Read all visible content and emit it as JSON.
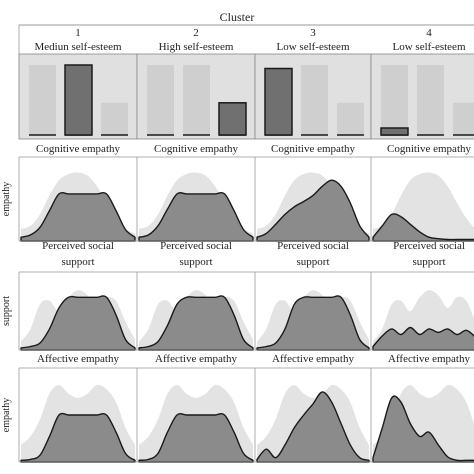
{
  "chart_data": {
    "type": "cluster-profile-grid",
    "header": "Cluster",
    "clusters": [
      {
        "number": "1",
        "self_esteem_label": "Mediun self-esteem",
        "bars": [
          1.0,
          1.0,
          0.46
        ],
        "highlight": 1
      },
      {
        "number": "2",
        "self_esteem_label": "High self-esteem",
        "bars": [
          1.0,
          1.0,
          0.46
        ],
        "highlight": 2
      },
      {
        "number": "3",
        "self_esteem_label": "Low self-esteem",
        "bars": [
          0.95,
          1.0,
          0.46
        ],
        "highlight": 0
      },
      {
        "number": "4",
        "self_esteem_label": "Low self-esteem",
        "bars": [
          1.0,
          1.0,
          0.46
        ],
        "highlight": 0,
        "highlight_value": 0.1
      }
    ],
    "rows": [
      {
        "row_label": "empathy",
        "panel_title": [
          "Cognitive empathy"
        ],
        "background_profile": [
          0.16,
          0.2,
          0.35,
          0.6,
          0.8,
          0.88,
          0.9,
          0.86,
          0.72,
          0.5,
          0.3,
          0.16,
          0.1
        ],
        "profiles": [
          [
            0.05,
            0.08,
            0.18,
            0.4,
            0.62,
            0.62,
            0.62,
            0.62,
            0.62,
            0.62,
            0.4,
            0.15,
            0.05
          ],
          [
            0.05,
            0.08,
            0.2,
            0.42,
            0.62,
            0.62,
            0.62,
            0.62,
            0.62,
            0.62,
            0.4,
            0.15,
            0.05
          ],
          [
            0.05,
            0.1,
            0.22,
            0.35,
            0.45,
            0.52,
            0.6,
            0.72,
            0.8,
            0.72,
            0.5,
            0.2,
            0.05
          ],
          [
            0.05,
            0.2,
            0.35,
            0.32,
            0.22,
            0.12,
            0.05,
            0.03,
            0.02,
            0.02,
            0.02,
            0.02,
            0.02
          ]
        ]
      },
      {
        "row_label": "support",
        "panel_title": [
          "Perceived social",
          "support"
        ],
        "background_profile": [
          0.12,
          0.3,
          0.65,
          0.7,
          0.55,
          0.75,
          0.85,
          0.78,
          0.6,
          0.75,
          0.7,
          0.4,
          0.15
        ],
        "profiles": [
          [
            0.03,
            0.05,
            0.1,
            0.3,
            0.6,
            0.75,
            0.75,
            0.75,
            0.75,
            0.75,
            0.5,
            0.15,
            0.03
          ],
          [
            0.03,
            0.05,
            0.12,
            0.35,
            0.65,
            0.75,
            0.75,
            0.75,
            0.75,
            0.75,
            0.5,
            0.15,
            0.03
          ],
          [
            0.03,
            0.05,
            0.1,
            0.3,
            0.65,
            0.75,
            0.75,
            0.75,
            0.75,
            0.75,
            0.5,
            0.15,
            0.03
          ],
          [
            0.05,
            0.2,
            0.3,
            0.22,
            0.32,
            0.22,
            0.3,
            0.25,
            0.3,
            0.22,
            0.28,
            0.18,
            0.05
          ]
        ]
      },
      {
        "row_label": "empathy",
        "panel_title": [
          "Affective empathy"
        ],
        "background_profile": [
          0.2,
          0.3,
          0.5,
          0.8,
          0.9,
          0.8,
          0.75,
          0.8,
          0.9,
          0.85,
          0.7,
          0.4,
          0.2
        ],
        "profiles": [
          [
            0.02,
            0.03,
            0.08,
            0.3,
            0.55,
            0.55,
            0.55,
            0.55,
            0.55,
            0.55,
            0.35,
            0.1,
            0.02
          ],
          [
            0.02,
            0.03,
            0.1,
            0.35,
            0.55,
            0.55,
            0.55,
            0.55,
            0.55,
            0.55,
            0.35,
            0.1,
            0.02
          ],
          [
            0.03,
            0.15,
            0.05,
            0.2,
            0.4,
            0.55,
            0.68,
            0.82,
            0.7,
            0.45,
            0.2,
            0.05,
            0.02
          ],
          [
            0.05,
            0.4,
            0.75,
            0.7,
            0.45,
            0.3,
            0.35,
            0.2,
            0.06,
            0.02,
            0.02,
            0.02,
            0.02
          ]
        ]
      }
    ],
    "colors": {
      "panel_bg": "#e0e0e0",
      "bar_light": "#cfcfcf",
      "bar_dark": "#707070",
      "density_bg": "#e3e3e3",
      "density_fg": "#8b8b8b",
      "stroke": "#1a1a1a",
      "grid": "#999999"
    }
  }
}
